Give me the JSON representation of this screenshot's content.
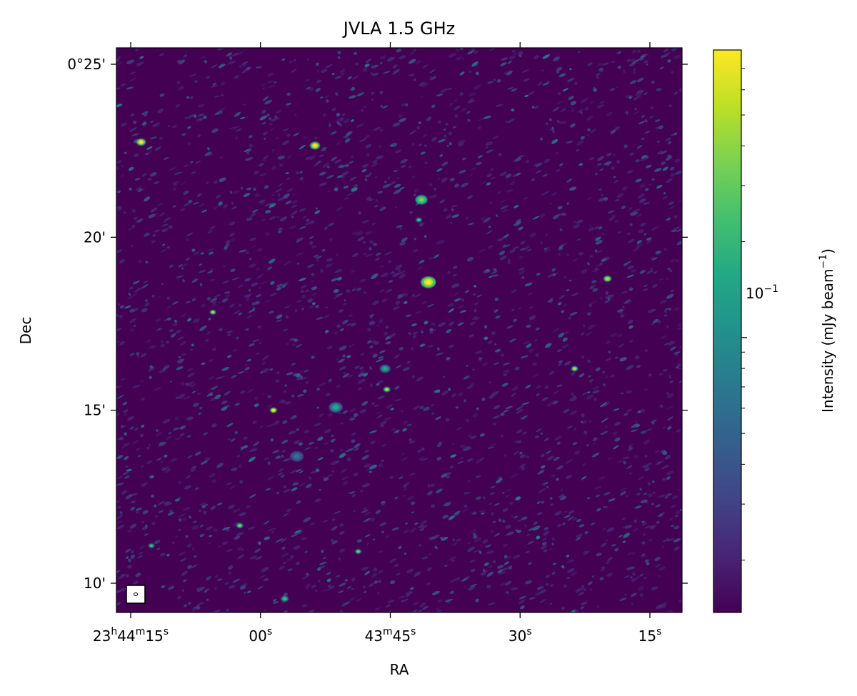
{
  "chart_data": {
    "type": "heatmap",
    "title": "JVLA 1.5 GHz",
    "xlabel": "RA",
    "ylabel": "Dec",
    "x_ticks": [
      {
        "hms": "23h44m15s",
        "parts": [
          {
            "v": "23"
          },
          {
            "s": "h"
          },
          {
            "v": "44"
          },
          {
            "s": "m"
          },
          {
            "v": "15"
          },
          {
            "s": "s"
          }
        ]
      },
      {
        "hms": "23h44m00s",
        "parts": [
          {
            "v": "00"
          },
          {
            "s": "s"
          }
        ]
      },
      {
        "hms": "23h43m45s",
        "parts": [
          {
            "v": "43"
          },
          {
            "s": "m"
          },
          {
            "v": "45"
          },
          {
            "s": "s"
          }
        ]
      },
      {
        "hms": "23h43m30s",
        "parts": [
          {
            "v": "30"
          },
          {
            "s": "s"
          }
        ]
      },
      {
        "hms": "23h43m15s",
        "parts": [
          {
            "v": "15"
          },
          {
            "s": "s"
          }
        ]
      }
    ],
    "y_ticks": [
      "0°25'",
      "20'",
      "15'",
      "10'"
    ],
    "dec_tick_values_arcmin": [
      25,
      20,
      15,
      10
    ],
    "colorbar": {
      "label_main": "Intensity (mJy beam",
      "label_exp": "−1",
      "label_close": ")",
      "scale": "log",
      "colormap": "viridis",
      "tick_base": "10",
      "tick_exp": "−1",
      "tick_value": 0.1
    },
    "beam_marker": "lower-left",
    "sources": [
      {
        "ra": "23:44:13.8",
        "dec": "0:22:45",
        "peak": 0.5,
        "size": 1.2
      },
      {
        "ra": "23:43:53.7",
        "dec": "0:22:39",
        "peak": 0.5,
        "size": 1.3
      },
      {
        "ra": "23:43:41.4",
        "dec": "0:21:05",
        "peak": 0.28,
        "size": 1.6
      },
      {
        "ra": "23:43:41.7",
        "dec": "0:20:30",
        "peak": 0.18,
        "size": 0.8
      },
      {
        "ra": "23:43:40.6",
        "dec": "0:18:42",
        "peak": 0.5,
        "size": 2.0
      },
      {
        "ra": "23:43:19.9",
        "dec": "0:18:48",
        "peak": 0.4,
        "size": 1.0
      },
      {
        "ra": "23:43:23.7",
        "dec": "0:16:12",
        "peak": 0.3,
        "size": 0.9
      },
      {
        "ra": "23:43:45.6",
        "dec": "0:16:12",
        "peak": 0.12,
        "size": 1.4
      },
      {
        "ra": "23:43:45.4",
        "dec": "0:15:36",
        "peak": 0.3,
        "size": 0.9
      },
      {
        "ra": "23:43:51.3",
        "dec": "0:15:05",
        "peak": 0.12,
        "size": 1.8
      },
      {
        "ra": "23:43:58.5",
        "dec": "0:15:00",
        "peak": 0.45,
        "size": 0.9
      },
      {
        "ra": "23:44:05.5",
        "dec": "0:17:50",
        "peak": 0.35,
        "size": 0.8
      },
      {
        "ra": "23:43:55.8",
        "dec": "0:13:40",
        "peak": 0.06,
        "size": 1.8
      },
      {
        "ra": "23:44:02.4",
        "dec": "0:11:40",
        "peak": 0.2,
        "size": 0.9
      },
      {
        "ra": "23:43:57.2",
        "dec": "0:09:33",
        "peak": 0.14,
        "size": 1.0
      },
      {
        "ra": "23:43:48.7",
        "dec": "0:10:55",
        "peak": 0.2,
        "size": 0.8
      },
      {
        "ra": "23:44:12.6",
        "dec": "0:11:05",
        "peak": 0.15,
        "size": 0.8
      }
    ]
  }
}
